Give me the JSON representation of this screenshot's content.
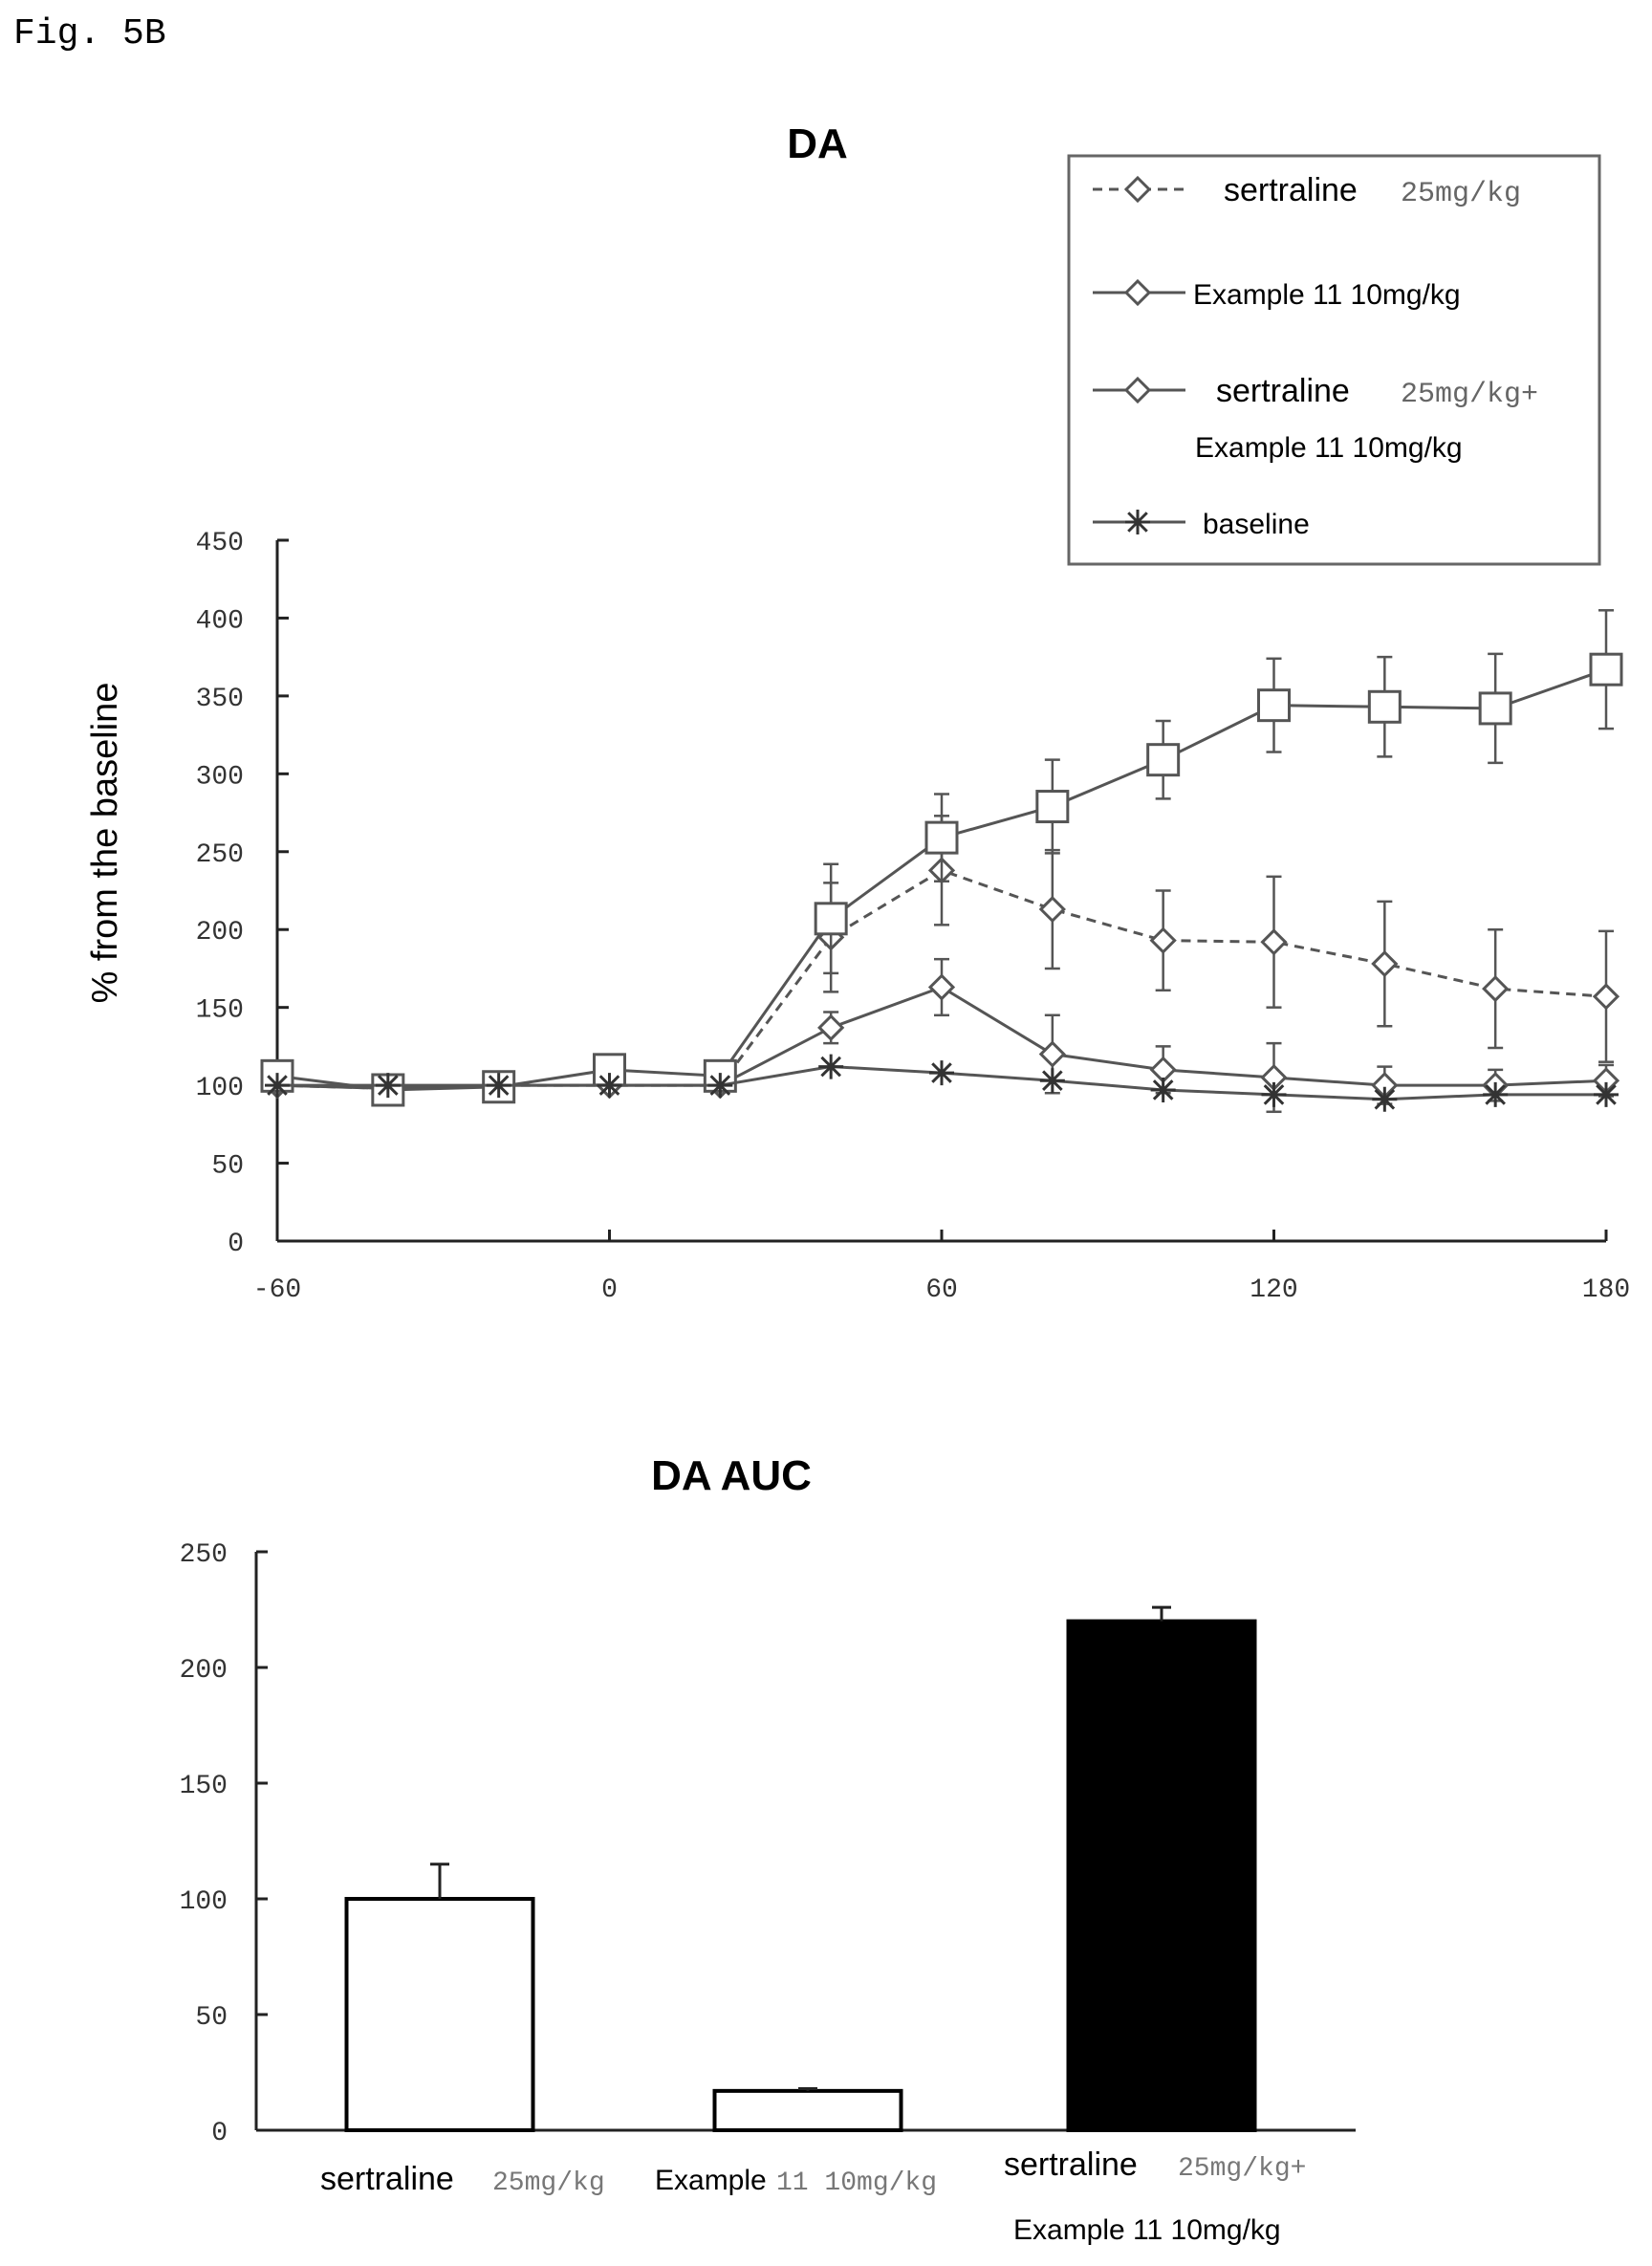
{
  "figure_label": "Fig. 5B",
  "chart_data": [
    {
      "type": "line",
      "title": "DA",
      "ylabel": "% from the baseline",
      "xlabel": "",
      "x": [
        -60,
        -40,
        -20,
        0,
        20,
        40,
        60,
        80,
        100,
        120,
        140,
        160,
        180
      ],
      "xticks": [
        -60,
        0,
        60,
        120,
        180
      ],
      "xlim": [
        -60,
        180
      ],
      "ylim": [
        0,
        450
      ],
      "yticks": [
        0,
        50,
        100,
        150,
        200,
        250,
        300,
        350,
        400,
        450
      ],
      "legend_position": "top-right",
      "series": [
        {
          "legend_name": "sertraline",
          "legend_dose": "25mg/kg",
          "marker": "diamond",
          "dash": true,
          "values": [
            100,
            98,
            100,
            100,
            100,
            195,
            238,
            213,
            193,
            192,
            178,
            162,
            157
          ],
          "errors": [
            5,
            5,
            5,
            5,
            5,
            35,
            35,
            38,
            32,
            42,
            40,
            38,
            42
          ]
        },
        {
          "legend_name": "Example 11 10mg/kg",
          "legend_dose": "",
          "marker": "diamond",
          "dash": false,
          "values": [
            100,
            98,
            100,
            100,
            100,
            137,
            163,
            120,
            110,
            105,
            100,
            100,
            103
          ],
          "errors": [
            5,
            5,
            5,
            5,
            5,
            10,
            18,
            25,
            15,
            22,
            12,
            10,
            10
          ]
        },
        {
          "legend_name": "sertraline",
          "legend_dose": "25mg/kg+",
          "legend_line2": "Example 11 10mg/kg",
          "marker": "square",
          "dash": false,
          "values": [
            106,
            97,
            99,
            110,
            106,
            207,
            259,
            279,
            309,
            344,
            343,
            342,
            367
          ],
          "errors": [
            5,
            5,
            5,
            5,
            5,
            35,
            28,
            30,
            25,
            30,
            32,
            35,
            38
          ]
        },
        {
          "legend_name": "baseline",
          "legend_dose": "",
          "marker": "star",
          "dash": false,
          "values": [
            100,
            100,
            100,
            100,
            100,
            112,
            108,
            103,
            97,
            94,
            91,
            94,
            94
          ],
          "errors": [
            3,
            3,
            3,
            3,
            3,
            5,
            5,
            5,
            5,
            5,
            5,
            5,
            5
          ]
        }
      ]
    },
    {
      "type": "bar",
      "title": "DA AUC",
      "xlabel": "",
      "ylabel": "",
      "ylim": [
        0,
        250
      ],
      "yticks": [
        0,
        50,
        100,
        150,
        200,
        250
      ],
      "categories": [
        {
          "name": "sertraline",
          "dose": "25mg/kg",
          "line2": "",
          "fill": "#ffffff"
        },
        {
          "name": "Example",
          "dose": "11 10mg/kg",
          "line2": "",
          "fill": "#ffffff"
        },
        {
          "name": "sertraline",
          "dose": "25mg/kg+",
          "line2": "Example 11 10mg/kg",
          "fill": "#000000"
        }
      ],
      "values": [
        100,
        17,
        220
      ],
      "errors": [
        15,
        1,
        6
      ]
    }
  ]
}
